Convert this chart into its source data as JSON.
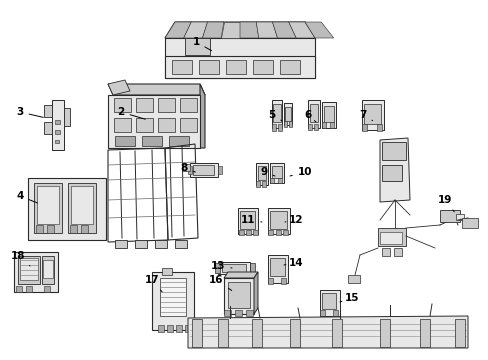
{
  "bg": "#ffffff",
  "line_color": "#2a2a2a",
  "fill_light": "#e8e8e8",
  "fill_mid": "#cccccc",
  "fill_dark": "#aaaaaa",
  "fill_hatch": "#d0d0d0",
  "label_positions": {
    "1": [
      196,
      42,
      214,
      52
    ],
    "2": [
      121,
      112,
      148,
      120
    ],
    "3": [
      20,
      112,
      46,
      118
    ],
    "4": [
      20,
      196,
      40,
      204
    ],
    "5": [
      272,
      115,
      284,
      122
    ],
    "6": [
      308,
      115,
      316,
      122
    ],
    "7": [
      363,
      115,
      375,
      122
    ],
    "8": [
      184,
      168,
      198,
      173
    ],
    "9": [
      264,
      172,
      275,
      176
    ],
    "10": [
      305,
      172,
      290,
      176
    ],
    "11": [
      248,
      220,
      262,
      222
    ],
    "12": [
      296,
      220,
      285,
      222
    ],
    "13": [
      218,
      266,
      232,
      268
    ],
    "14": [
      296,
      263,
      284,
      265
    ],
    "15": [
      352,
      298,
      340,
      302
    ],
    "16": [
      216,
      280,
      234,
      292
    ],
    "17": [
      152,
      280,
      164,
      294
    ],
    "18": [
      18,
      256,
      30,
      266
    ],
    "19": [
      445,
      200,
      456,
      214
    ]
  }
}
